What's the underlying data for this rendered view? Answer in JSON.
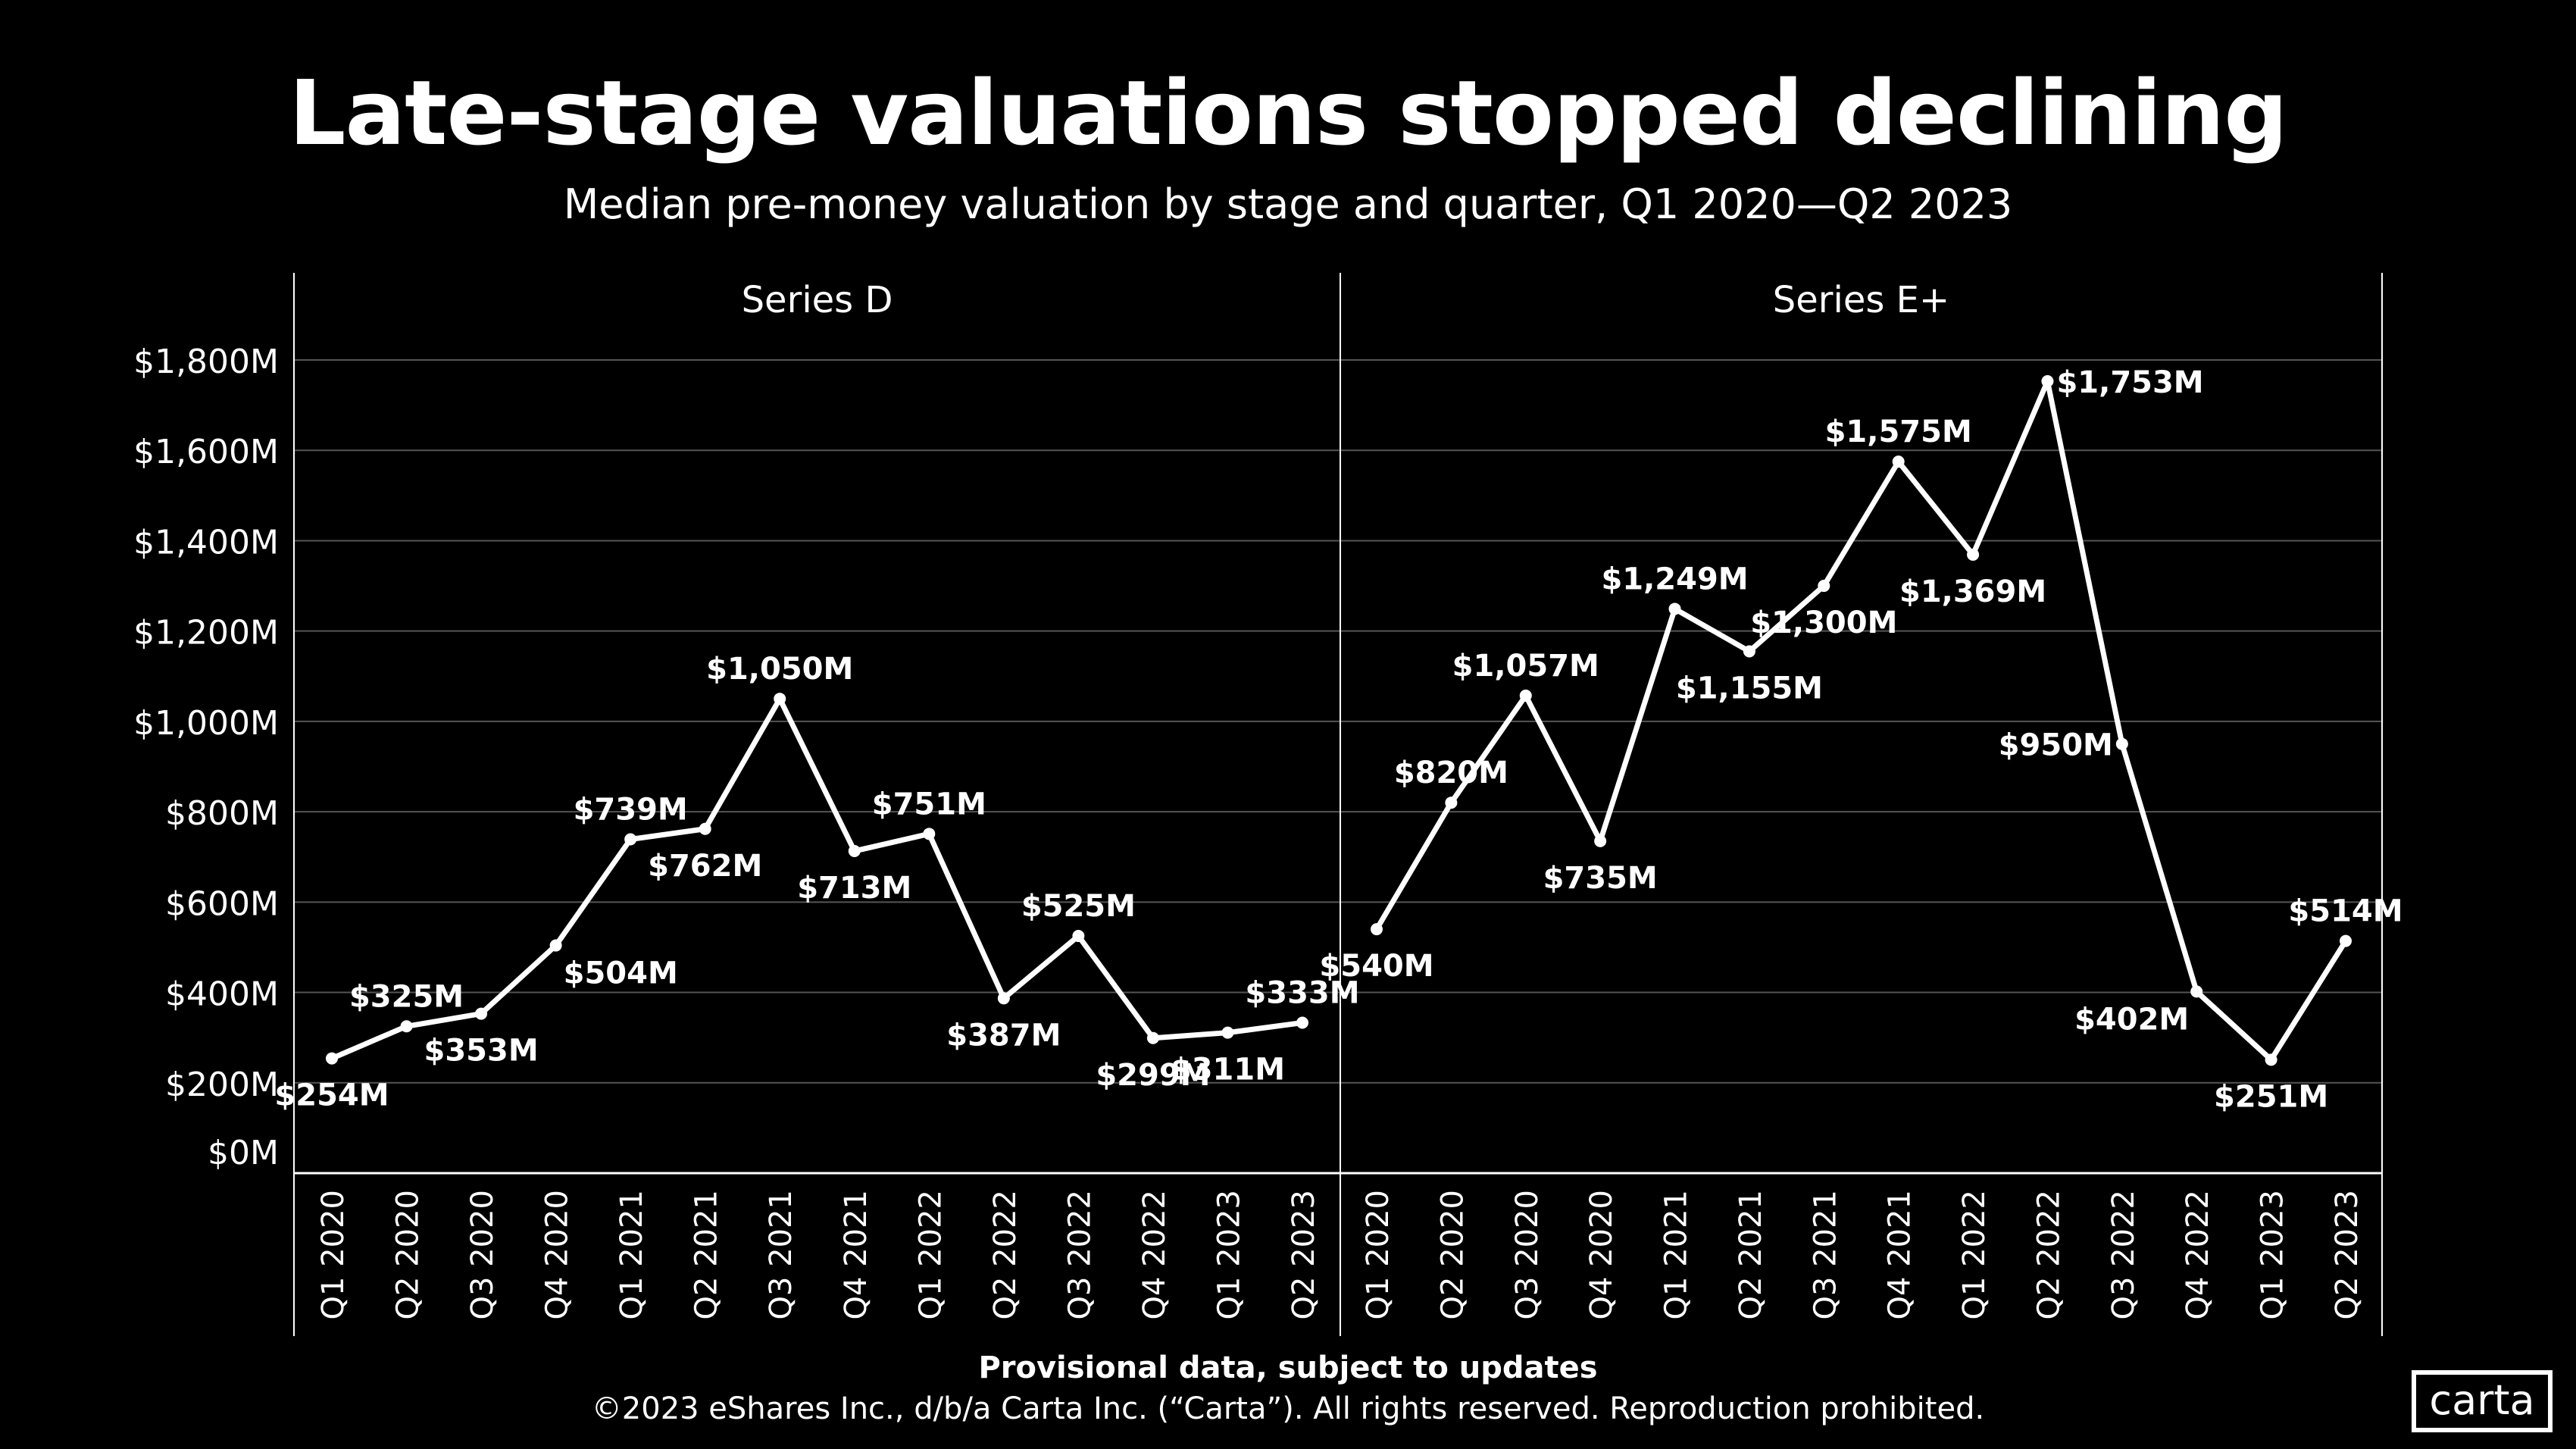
{
  "title": "Late-stage valuations stopped declining",
  "subtitle": "Median pre-money valuation by stage and quarter, Q1 2020—Q2 2023",
  "footnote": "Provisional data, subject to updates",
  "copyright": "©2023 eShares Inc., d/b/a Carta Inc. (“Carta”). All rights reserved. Reproduction prohibited.",
  "logo": "carta",
  "colors": {
    "background": "#000000",
    "line": "#ffffff",
    "grid": "#555555"
  },
  "chart_data": {
    "type": "line",
    "ylim": [
      0,
      1800
    ],
    "yticks": [
      0,
      200,
      400,
      600,
      800,
      1000,
      1200,
      1400,
      1600,
      1800
    ],
    "ytick_labels": [
      "$0M",
      "$200M",
      "$400M",
      "$600M",
      "$800M",
      "$1,000M",
      "$1,200M",
      "$1,400M",
      "$1,600M",
      "$1,800M"
    ],
    "grid": true,
    "categories": [
      "Q1 2020",
      "Q2 2020",
      "Q3 2020",
      "Q4 2020",
      "Q1 2021",
      "Q2 2021",
      "Q3 2021",
      "Q4 2021",
      "Q1 2022",
      "Q2 2022",
      "Q3 2022",
      "Q4 2022",
      "Q1 2023",
      "Q2 2023"
    ],
    "panels": [
      {
        "name": "Series D",
        "values": [
          254,
          325,
          353,
          504,
          739,
          762,
          1050,
          713,
          751,
          387,
          525,
          299,
          311,
          333
        ],
        "labels": [
          "$254M",
          "$325M",
          "$353M",
          "$504M",
          "$739M",
          "$762M",
          "$1,050M",
          "$713M",
          "$751M",
          "$387M",
          "$525M",
          "$299M",
          "$311M",
          "$333M"
        ],
        "label_pos": [
          "below",
          "above",
          "below",
          "below-right",
          "above",
          "below",
          "above",
          "below",
          "above",
          "below",
          "above",
          "below",
          "below",
          "above"
        ]
      },
      {
        "name": "Series E+",
        "values": [
          540,
          820,
          1057,
          735,
          1249,
          1155,
          1300,
          1575,
          1369,
          1753,
          950,
          402,
          251,
          514
        ],
        "labels": [
          "$540M",
          "$820M",
          "$1,057M",
          "$735M",
          "$1,249M",
          "$1,155M",
          "$1,300M",
          "$1,575M",
          "$1,369M",
          "$1,753M",
          "$950M",
          "$402M",
          "$251M",
          "$514M"
        ],
        "label_pos": [
          "below",
          "above",
          "above",
          "below",
          "above",
          "below",
          "below",
          "above",
          "below",
          "right",
          "left",
          "below-left",
          "below",
          "above"
        ]
      }
    ]
  }
}
